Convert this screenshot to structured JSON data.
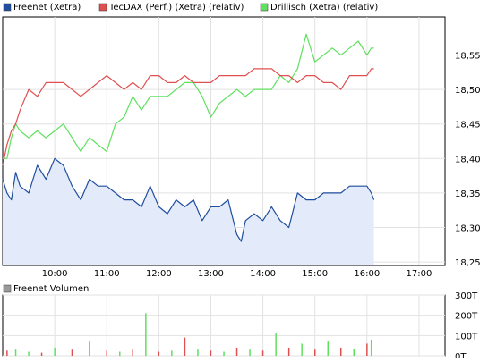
{
  "legend": [
    {
      "label": "Freenet (Xetra)",
      "color": "#1f4e9e"
    },
    {
      "label": "TecDAX (Perf.) (Xetra) (relativ)",
      "color": "#e05050"
    },
    {
      "label": "Drillisch (Xetra) (relativ)",
      "color": "#5fe05f"
    }
  ],
  "volume_legend": {
    "label": "Freenet Volumen",
    "color": "#999999"
  },
  "chart_data": [
    {
      "type": "line",
      "x_ticks": [
        "10:00",
        "11:00",
        "12:00",
        "13:00",
        "14:00",
        "15:00",
        "16:00",
        "17:00"
      ],
      "x_range": [
        "09:00",
        "17:30"
      ],
      "y_ticks": [
        "18,25",
        "18,30",
        "18,35",
        "18,40",
        "18,45",
        "18,50",
        "18,55"
      ],
      "ylim": [
        18.245,
        18.605
      ],
      "grid": true,
      "legend_position": "top-left",
      "series": [
        {
          "name": "Freenet (Xetra)",
          "color": "#1f4e9e",
          "fill": "#e3ebfa",
          "x": [
            "09:00",
            "09:05",
            "09:10",
            "09:15",
            "09:20",
            "09:30",
            "09:40",
            "09:50",
            "10:00",
            "10:10",
            "10:20",
            "10:30",
            "10:40",
            "10:50",
            "11:00",
            "11:10",
            "11:20",
            "11:30",
            "11:40",
            "11:50",
            "12:00",
            "12:10",
            "12:20",
            "12:30",
            "12:40",
            "12:50",
            "13:00",
            "13:10",
            "13:20",
            "13:30",
            "13:35",
            "13:40",
            "13:50",
            "14:00",
            "14:10",
            "14:20",
            "14:30",
            "14:40",
            "14:50",
            "15:00",
            "15:10",
            "15:20",
            "15:30",
            "15:40",
            "15:50",
            "16:00",
            "16:05",
            "16:08"
          ],
          "y": [
            18.37,
            18.35,
            18.34,
            18.38,
            18.36,
            18.35,
            18.39,
            18.37,
            18.4,
            18.39,
            18.36,
            18.34,
            18.37,
            18.36,
            18.36,
            18.35,
            18.34,
            18.34,
            18.33,
            18.36,
            18.33,
            18.32,
            18.34,
            18.33,
            18.34,
            18.31,
            18.33,
            18.33,
            18.34,
            18.29,
            18.28,
            18.31,
            18.32,
            18.31,
            18.33,
            18.31,
            18.3,
            18.35,
            18.34,
            18.34,
            18.35,
            18.35,
            18.35,
            18.36,
            18.36,
            18.36,
            18.35,
            18.34
          ]
        },
        {
          "name": "TecDAX (Perf.) (Xetra) (relativ)",
          "color": "#e05050",
          "x": [
            "09:00",
            "09:05",
            "09:10",
            "09:15",
            "09:20",
            "09:30",
            "09:40",
            "09:50",
            "10:00",
            "10:10",
            "10:20",
            "10:30",
            "10:40",
            "10:50",
            "11:00",
            "11:10",
            "11:20",
            "11:30",
            "11:40",
            "11:50",
            "12:00",
            "12:10",
            "12:20",
            "12:30",
            "12:40",
            "12:50",
            "13:00",
            "13:10",
            "13:20",
            "13:30",
            "13:40",
            "13:50",
            "14:00",
            "14:10",
            "14:20",
            "14:30",
            "14:40",
            "14:50",
            "15:00",
            "15:10",
            "15:20",
            "15:30",
            "15:40",
            "15:50",
            "16:00",
            "16:05",
            "16:08"
          ],
          "y": [
            18.39,
            18.42,
            18.44,
            18.45,
            18.47,
            18.5,
            18.49,
            18.51,
            18.51,
            18.51,
            18.5,
            18.49,
            18.5,
            18.51,
            18.52,
            18.51,
            18.5,
            18.51,
            18.5,
            18.52,
            18.52,
            18.51,
            18.51,
            18.52,
            18.51,
            18.51,
            18.51,
            18.52,
            18.52,
            18.52,
            18.52,
            18.53,
            18.53,
            18.53,
            18.52,
            18.52,
            18.51,
            18.52,
            18.52,
            18.51,
            18.51,
            18.5,
            18.52,
            18.52,
            18.52,
            18.53,
            18.53
          ]
        },
        {
          "name": "Drillisch (Xetra) (relativ)",
          "color": "#5fe05f",
          "x": [
            "09:00",
            "09:05",
            "09:10",
            "09:15",
            "09:20",
            "09:30",
            "09:40",
            "09:50",
            "10:00",
            "10:10",
            "10:20",
            "10:30",
            "10:40",
            "10:50",
            "11:00",
            "11:10",
            "11:20",
            "11:30",
            "11:40",
            "11:50",
            "12:00",
            "12:10",
            "12:20",
            "12:30",
            "12:40",
            "12:50",
            "13:00",
            "13:10",
            "13:20",
            "13:30",
            "13:40",
            "13:50",
            "14:00",
            "14:10",
            "14:20",
            "14:30",
            "14:40",
            "14:50",
            "15:00",
            "15:10",
            "15:20",
            "15:30",
            "15:40",
            "15:50",
            "16:00",
            "16:05",
            "16:08"
          ],
          "y": [
            18.4,
            18.4,
            18.43,
            18.45,
            18.44,
            18.43,
            18.44,
            18.43,
            18.44,
            18.45,
            18.43,
            18.41,
            18.43,
            18.42,
            18.41,
            18.45,
            18.46,
            18.49,
            18.47,
            18.49,
            18.49,
            18.49,
            18.5,
            18.51,
            18.51,
            18.49,
            18.46,
            18.48,
            18.49,
            18.5,
            18.49,
            18.5,
            18.5,
            18.5,
            18.52,
            18.51,
            18.53,
            18.58,
            18.54,
            18.55,
            18.56,
            18.55,
            18.56,
            18.57,
            18.55,
            18.56,
            18.56
          ]
        }
      ]
    },
    {
      "type": "bar",
      "y_ticks": [
        "0T",
        "100T",
        "200T",
        "300T"
      ],
      "ylim": [
        0,
        300
      ],
      "grid": true,
      "series": [
        {
          "name": "Freenet Volumen",
          "x": [
            "09:05",
            "09:15",
            "09:30",
            "09:45",
            "10:00",
            "10:20",
            "10:40",
            "11:00",
            "11:15",
            "11:30",
            "11:45",
            "12:00",
            "12:15",
            "12:30",
            "12:45",
            "13:00",
            "13:15",
            "13:30",
            "13:45",
            "14:00",
            "14:15",
            "14:30",
            "14:45",
            "15:00",
            "15:15",
            "15:30",
            "15:45",
            "16:00",
            "16:05"
          ],
          "values": [
            25,
            30,
            20,
            15,
            40,
            30,
            70,
            25,
            20,
            30,
            210,
            20,
            25,
            90,
            30,
            25,
            20,
            40,
            30,
            25,
            110,
            40,
            60,
            30,
            70,
            40,
            35,
            60,
            80
          ],
          "colors": [
            "#e05050",
            "#5fe05f",
            "#5fe05f",
            "#e05050",
            "#5fe05f",
            "#e05050",
            "#5fe05f",
            "#e05050",
            "#5fe05f",
            "#e05050",
            "#5fe05f",
            "#e05050",
            "#5fe05f",
            "#e05050",
            "#5fe05f",
            "#e05050",
            "#5fe05f",
            "#e05050",
            "#5fe05f",
            "#e05050",
            "#5fe05f",
            "#e05050",
            "#5fe05f",
            "#e05050",
            "#5fe05f",
            "#e05050",
            "#5fe05f",
            "#e05050",
            "#5fe05f"
          ]
        }
      ]
    }
  ]
}
